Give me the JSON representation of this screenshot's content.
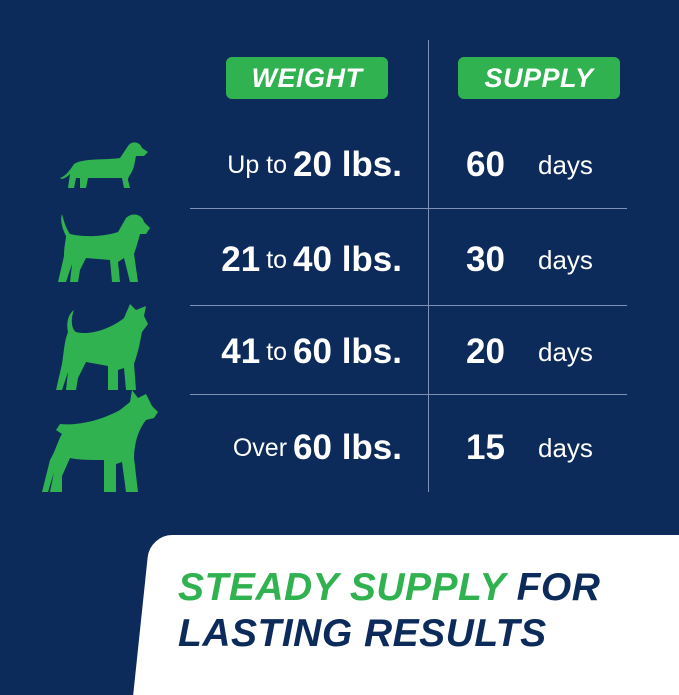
{
  "headers": {
    "weight": "WEIGHT",
    "supply": "SUPPLY"
  },
  "rows": [
    {
      "dog_icon": "dachshund-icon",
      "prefix": "Up to",
      "from": "",
      "connector": "",
      "to": "20 lbs.",
      "supply": "60",
      "unit": "days"
    },
    {
      "dog_icon": "medium-dog-icon",
      "prefix": "",
      "from": "21",
      "connector": "to",
      "to": "40 lbs.",
      "supply": "30",
      "unit": "days"
    },
    {
      "dog_icon": "terrier-icon",
      "prefix": "",
      "from": "41",
      "connector": "to",
      "to": "60 lbs.",
      "supply": "20",
      "unit": "days"
    },
    {
      "dog_icon": "boxer-icon",
      "prefix": "Over",
      "from": "",
      "connector": "",
      "to": "60 lbs.",
      "supply": "15",
      "unit": "days"
    }
  ],
  "tagline": {
    "highlight": "STEADY SUPPLY",
    "line1_rest": "FOR",
    "line2": "LASTING RESULTS"
  },
  "colors": {
    "background": "#0c2b5b",
    "accent": "#2fb24f",
    "panel": "#ffffff"
  }
}
